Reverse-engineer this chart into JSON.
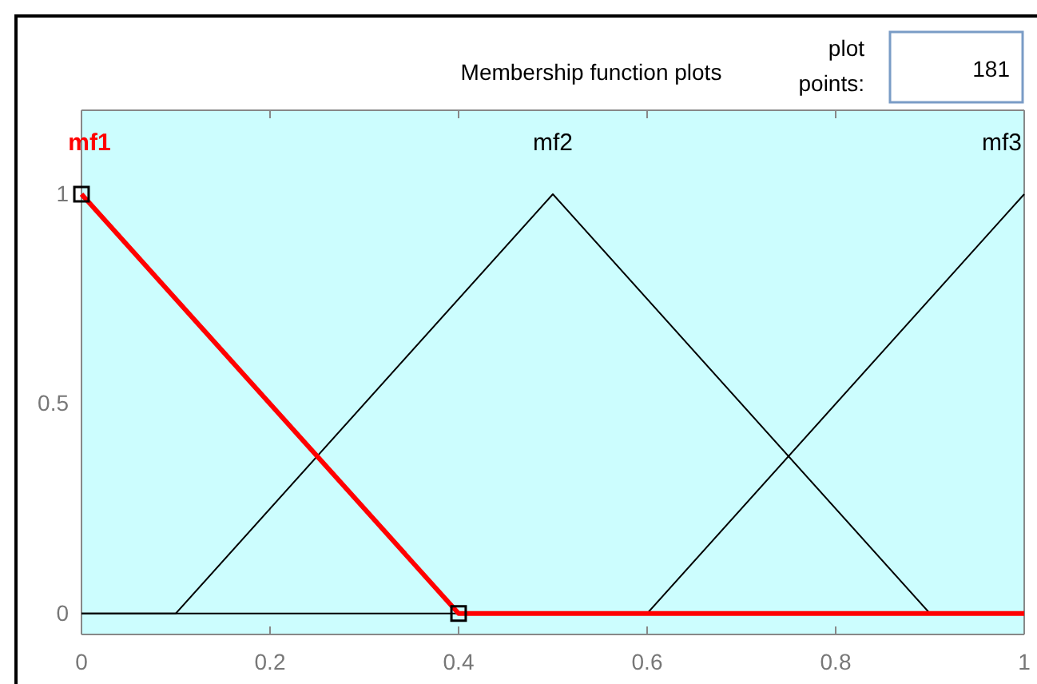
{
  "chart_data": {
    "type": "line",
    "title": "Membership function plots",
    "annotations": [
      "plot points:",
      "181"
    ],
    "xlim": [
      0,
      1
    ],
    "ylim": [
      -0.05,
      1.2
    ],
    "xticks": [
      0,
      0.2,
      0.4,
      0.6,
      0.8,
      1
    ],
    "yticks": [
      0,
      0.5,
      1
    ],
    "marker": "none",
    "series": [
      {
        "name": "mf2",
        "color": "#000000",
        "x": [
          0,
          0.1,
          0.5,
          0.9,
          1
        ],
        "values": [
          0,
          0,
          1,
          0,
          0
        ]
      },
      {
        "name": "mf3",
        "color": "#000000",
        "x": [
          0,
          0.6,
          1
        ],
        "values": [
          0,
          0,
          1
        ]
      },
      {
        "name": "mf1",
        "color": "#ff0000",
        "x": [
          0,
          0.4,
          1
        ],
        "values": [
          1,
          0,
          0
        ]
      },
      {
        "type": "scatter",
        "marker": "square",
        "color": "#000000",
        "x": [
          0,
          0.4
        ],
        "values": [
          1,
          0
        ]
      }
    ]
  }
}
